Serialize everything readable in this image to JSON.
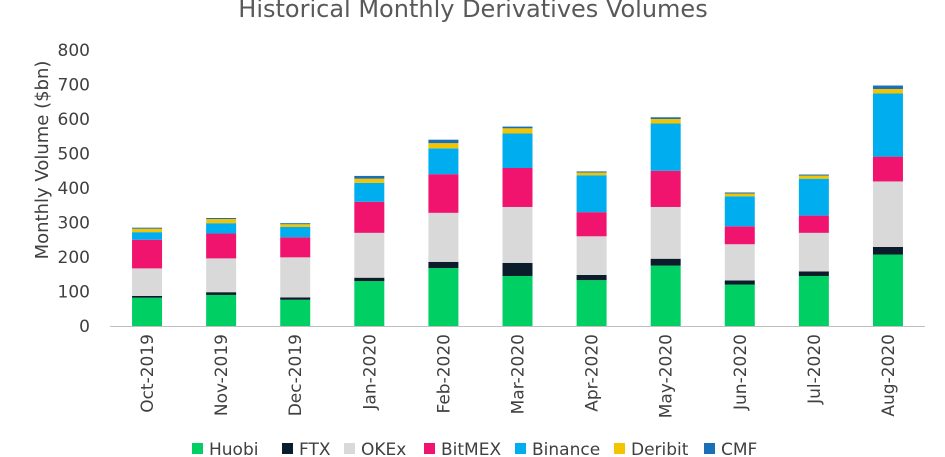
{
  "chart_data": {
    "type": "bar",
    "stacked": true,
    "title": "Historical Monthly Derivatives Volumes",
    "ylabel": "Monthly Volume ($bn)",
    "xlabel": "",
    "ylim": [
      0,
      800
    ],
    "yticks": [
      0,
      100,
      200,
      300,
      400,
      500,
      600,
      700,
      800
    ],
    "grid": false,
    "legend_placement": "bottom",
    "categories": [
      "Oct-2019",
      "Nov-2019",
      "Dec-2019",
      "Jan-2020",
      "Feb-2020",
      "Mar-2020",
      "Apr-2020",
      "May-2020",
      "Jun-2020",
      "Jul-2020",
      "Aug-2020"
    ],
    "series": [
      {
        "name": "Huobi",
        "color": "#00d064",
        "values": [
          82,
          90,
          76,
          130,
          168,
          145,
          133,
          175,
          120,
          145,
          207
        ]
      },
      {
        "name": "FTX",
        "color": "#0b1d2a",
        "values": [
          5,
          8,
          7,
          10,
          18,
          38,
          15,
          20,
          12,
          13,
          22
        ]
      },
      {
        "name": "OKEx",
        "color": "#d9d9d9",
        "values": [
          80,
          98,
          116,
          130,
          142,
          162,
          112,
          150,
          105,
          112,
          190
        ]
      },
      {
        "name": "BitMEX",
        "color": "#f0146e",
        "values": [
          83,
          72,
          58,
          90,
          112,
          113,
          70,
          105,
          52,
          50,
          72
        ]
      },
      {
        "name": "Binance",
        "color": "#00aeef",
        "values": [
          22,
          30,
          30,
          55,
          75,
          100,
          107,
          137,
          87,
          107,
          183
        ]
      },
      {
        "name": "Deribit",
        "color": "#f5c400",
        "values": [
          10,
          12,
          8,
          12,
          15,
          15,
          8,
          13,
          8,
          9,
          13
        ]
      },
      {
        "name": "CMF",
        "color": "#1a6fb5",
        "values": [
          3,
          3,
          3,
          8,
          10,
          5,
          3,
          5,
          3,
          3,
          10
        ]
      }
    ]
  }
}
